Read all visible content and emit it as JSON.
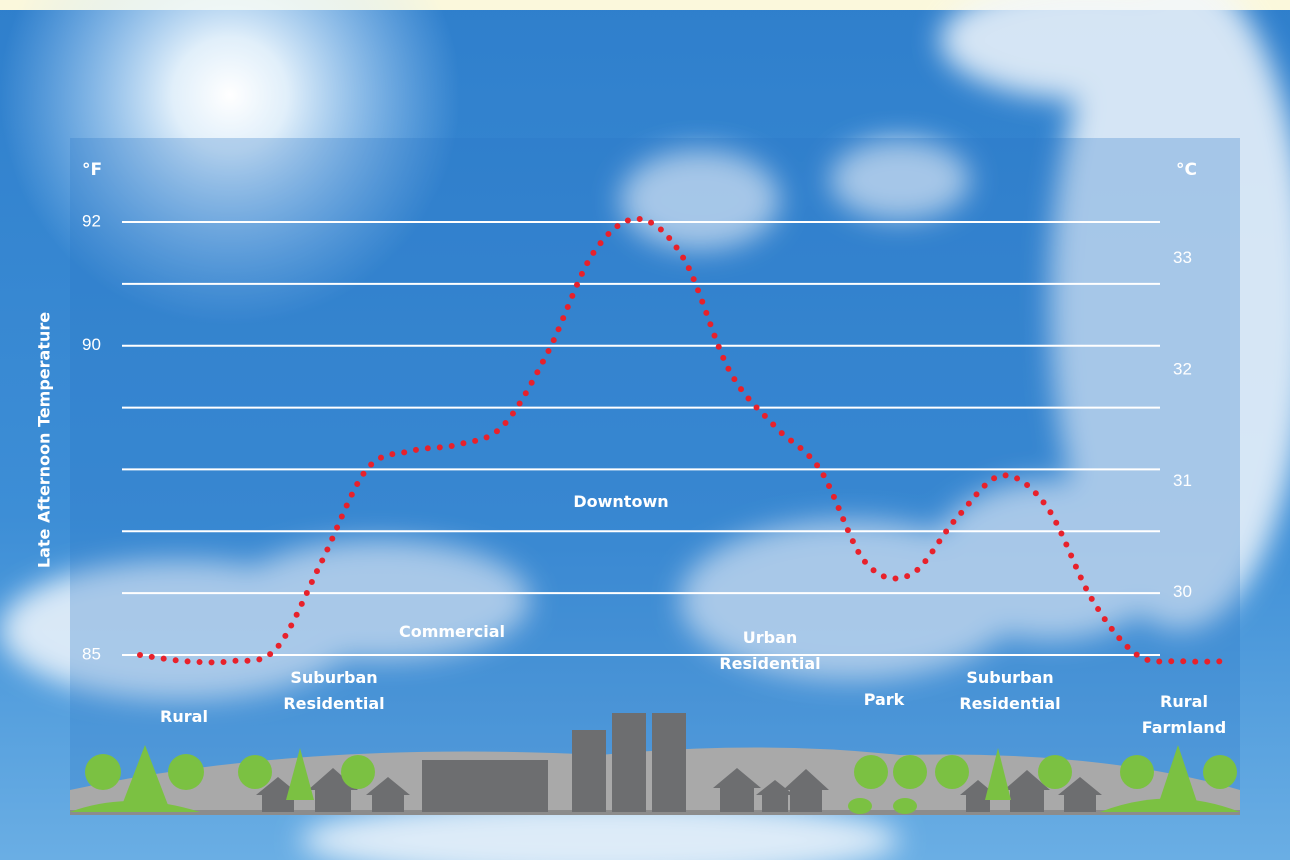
{
  "chart_data": {
    "type": "line",
    "y_label": "Late Afternoon Temperature",
    "y_unit": "°F",
    "y2_unit": "°C",
    "ylim": [
      85,
      92
    ],
    "yticks": [
      85,
      90,
      92
    ],
    "ygrid": [
      85,
      86,
      87,
      88,
      89,
      90,
      91,
      92
    ],
    "y2lim": [
      29.44,
      33.33
    ],
    "y2ticks": [
      30,
      31,
      32,
      33
    ],
    "grid": true,
    "series": [
      {
        "color": "#e8212b",
        "values": [
          85.0,
          84.9,
          84.9,
          85.1,
          86.5,
          88.0,
          88.3,
          88.4,
          88.7,
          89.9,
          91.5,
          92.05,
          91.4,
          89.6,
          88.7,
          88.0,
          86.5,
          86.3,
          87.2,
          87.9,
          87.4,
          85.9,
          85.0,
          84.9,
          84.9
        ]
      }
    ],
    "annotations": [
      {
        "lines": [
          "Rural"
        ]
      },
      {
        "lines": [
          "Suburban",
          "Residential"
        ]
      },
      {
        "lines": [
          "Commercial"
        ]
      },
      {
        "lines": [
          "Downtown"
        ]
      },
      {
        "lines": [
          "Urban",
          "Residential"
        ]
      },
      {
        "lines": [
          "Park"
        ]
      },
      {
        "lines": [
          "Suburban",
          "Residential"
        ]
      },
      {
        "lines": [
          "Rural",
          "Farmland"
        ]
      }
    ]
  }
}
